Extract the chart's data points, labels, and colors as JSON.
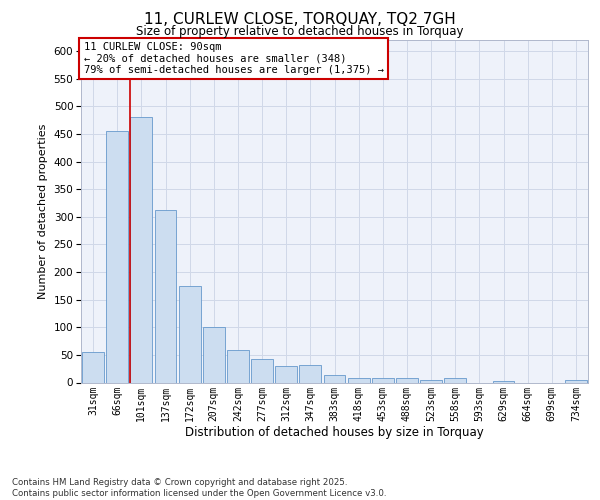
{
  "title1": "11, CURLEW CLOSE, TORQUAY, TQ2 7GH",
  "title2": "Size of property relative to detached houses in Torquay",
  "xlabel": "Distribution of detached houses by size in Torquay",
  "ylabel": "Number of detached properties",
  "bin_labels": [
    "31sqm",
    "66sqm",
    "101sqm",
    "137sqm",
    "172sqm",
    "207sqm",
    "242sqm",
    "277sqm",
    "312sqm",
    "347sqm",
    "383sqm",
    "418sqm",
    "453sqm",
    "488sqm",
    "523sqm",
    "558sqm",
    "593sqm",
    "629sqm",
    "664sqm",
    "699sqm",
    "734sqm"
  ],
  "values": [
    55,
    455,
    480,
    313,
    175,
    100,
    59,
    43,
    30,
    32,
    14,
    8,
    9,
    8,
    5,
    8,
    0,
    3,
    0,
    0,
    4
  ],
  "bar_color": "#ccddf0",
  "bar_edge_color": "#6699cc",
  "grid_color": "#d0d8e8",
  "background_color": "#eef2fa",
  "annotation_box_text": "11 CURLEW CLOSE: 90sqm\n← 20% of detached houses are smaller (348)\n79% of semi-detached houses are larger (1,375) →",
  "annotation_box_color": "#ffffff",
  "annotation_box_edge_color": "#cc0000",
  "red_line_x": 1.52,
  "ylim": [
    0,
    620
  ],
  "yticks": [
    0,
    50,
    100,
    150,
    200,
    250,
    300,
    350,
    400,
    450,
    500,
    550,
    600
  ],
  "footer_line1": "Contains HM Land Registry data © Crown copyright and database right 2025.",
  "footer_line2": "Contains public sector information licensed under the Open Government Licence v3.0."
}
